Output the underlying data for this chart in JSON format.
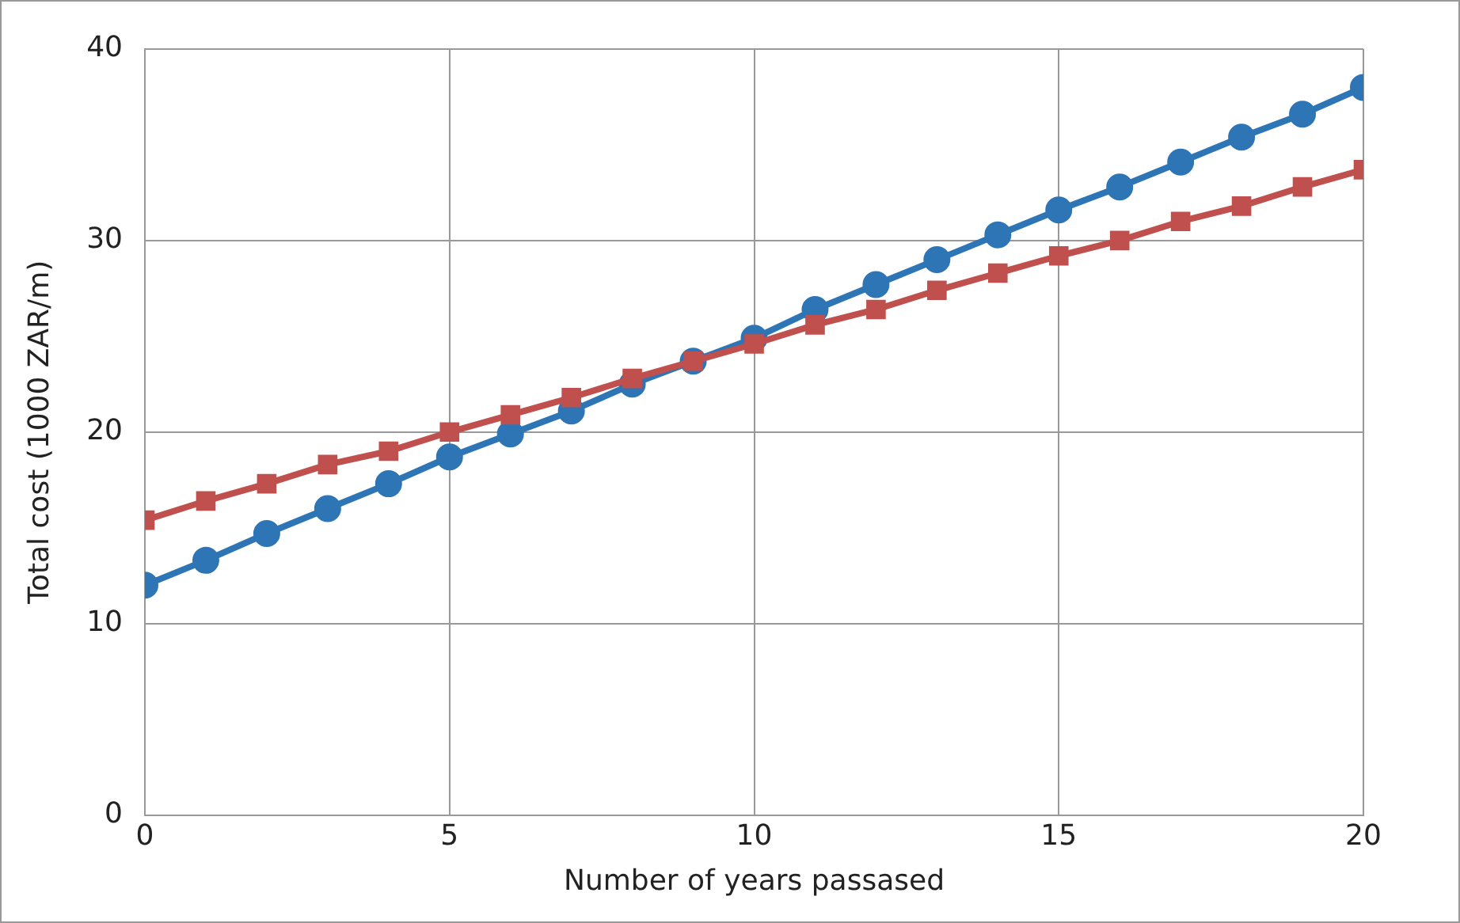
{
  "chart_data": {
    "type": "line",
    "xlabel": "Number of years passased",
    "ylabel": "Total cost (1000 ZAR/m)",
    "x": [
      0,
      1,
      2,
      3,
      4,
      5,
      6,
      7,
      8,
      9,
      10,
      11,
      12,
      13,
      14,
      15,
      16,
      17,
      18,
      19,
      20
    ],
    "xlim": [
      0,
      20
    ],
    "xticks": [
      0,
      5,
      10,
      15,
      20
    ],
    "ylim": [
      0,
      40
    ],
    "yticks": [
      0,
      10,
      20,
      30,
      40
    ],
    "grid": true,
    "legend": false,
    "line_style": "solid",
    "series": [
      {
        "color": "#2e75b6",
        "marker": "circle",
        "values": [
          12.0,
          13.3,
          14.7,
          16.0,
          17.3,
          18.7,
          19.9,
          21.1,
          22.5,
          23.7,
          24.9,
          26.4,
          27.7,
          29.0,
          30.3,
          31.6,
          32.8,
          34.1,
          35.4,
          36.6,
          38.0
        ]
      },
      {
        "color": "#c0504d",
        "marker": "square",
        "values": [
          15.4,
          16.4,
          17.3,
          18.3,
          19.0,
          20.0,
          20.9,
          21.8,
          22.8,
          23.7,
          24.6,
          25.6,
          26.4,
          27.4,
          28.3,
          29.2,
          30.0,
          31.0,
          31.8,
          32.8,
          33.7
        ]
      }
    ]
  }
}
